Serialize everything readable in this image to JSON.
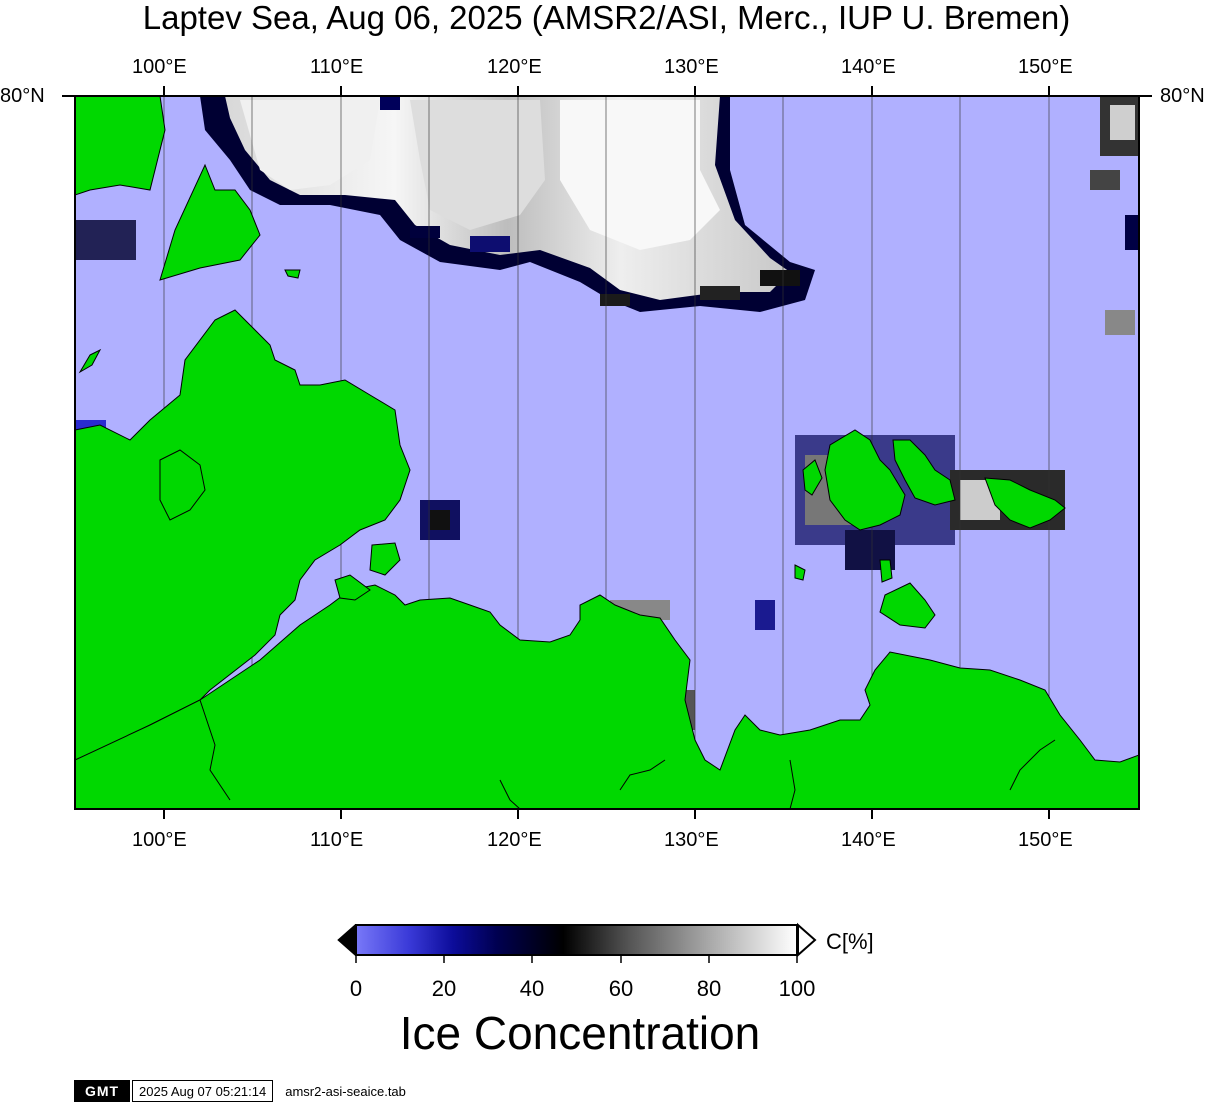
{
  "title": "Laptev Sea, Aug 06, 2025 (AMSR2/ASI, Merc., IUP U. Bremen)",
  "map": {
    "lon_labels": [
      "100°E",
      "110°E",
      "120°E",
      "130°E",
      "140°E",
      "150°E"
    ],
    "lat_label_left": "80°N",
    "lat_label_right": "80°N",
    "colors": {
      "land": "#00d800",
      "open_water": "#b0b0ff",
      "ice_dark": "#000033",
      "ice_bright": "#f4f4f4"
    }
  },
  "colorbar": {
    "unit": "C[%]",
    "ticks": [
      "0",
      "20",
      "40",
      "60",
      "80",
      "100"
    ],
    "title": "Ice Concentration"
  },
  "footer": {
    "logo": "GMT",
    "timestamp": "2025 Aug 07 05:21:14",
    "file": "amsr2-asi-seaice.tab"
  }
}
